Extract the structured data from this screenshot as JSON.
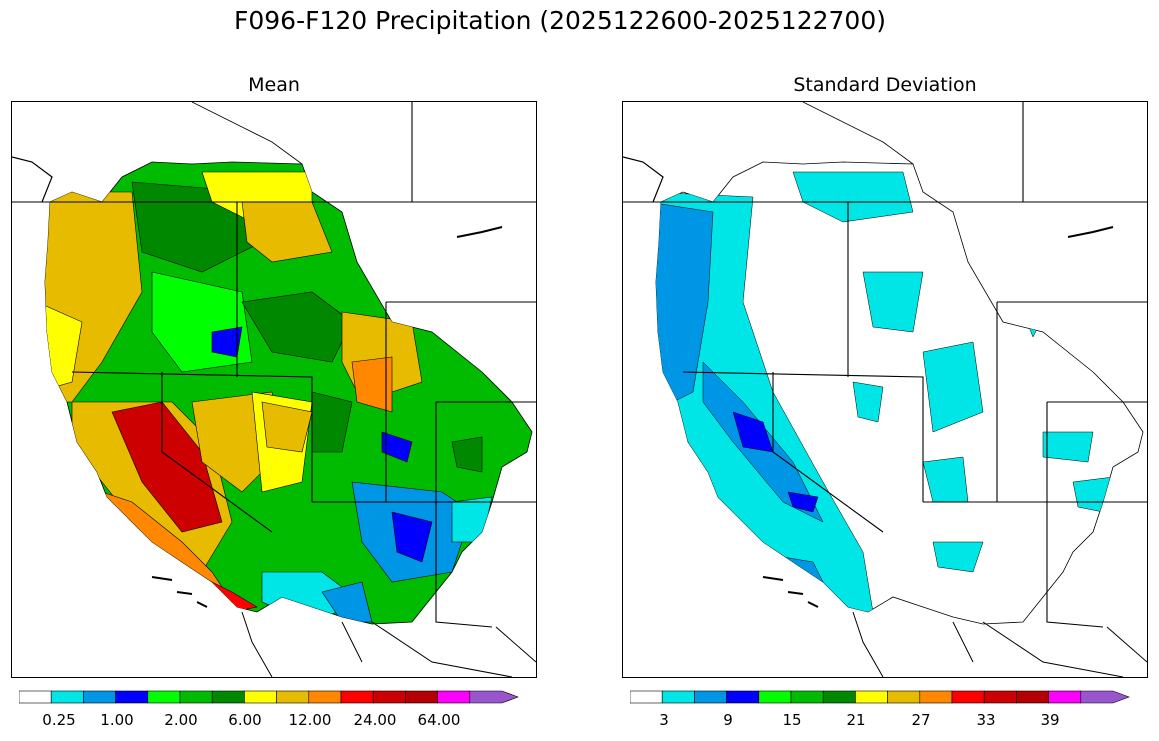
{
  "figure": {
    "title": "F096-F120 Precipitation (2025122600-2025122700)"
  },
  "panels": [
    {
      "title": "Mean",
      "colorbar": {
        "colors": [
          "#ffffff",
          "#00e5e5",
          "#0096e6",
          "#0000ff",
          "#00ff00",
          "#00bb00",
          "#008800",
          "#ffff00",
          "#e6bb00",
          "#ff8800",
          "#ff0000",
          "#cc0000",
          "#b40000",
          "#ff00ff",
          "#9955cc"
        ],
        "extend": "max",
        "tick_labels": [
          "0.25",
          "1.00",
          "2.00",
          "6.00",
          "12.00",
          "24.00",
          "64.00"
        ]
      }
    },
    {
      "title": "Standard Deviation",
      "colorbar": {
        "colors": [
          "#ffffff",
          "#00e5e5",
          "#0096e6",
          "#0000ff",
          "#00ff00",
          "#00bb00",
          "#008800",
          "#ffff00",
          "#e6bb00",
          "#ff8800",
          "#ff0000",
          "#cc0000",
          "#b40000",
          "#ff00ff",
          "#9955cc"
        ],
        "extend": "max",
        "tick_labels": [
          "3",
          "9",
          "15",
          "21",
          "27",
          "33",
          "39"
        ]
      }
    }
  ]
}
